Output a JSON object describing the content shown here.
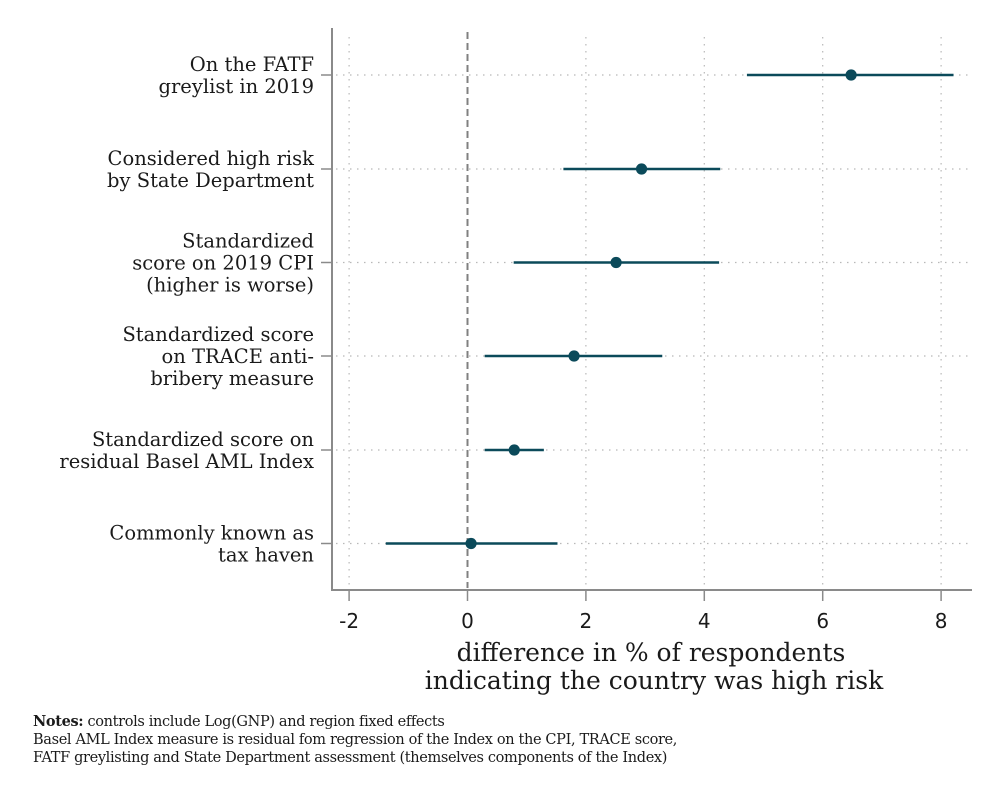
{
  "chart_data": {
    "type": "scatter",
    "subtype": "coefficient-plot",
    "title": "",
    "xlabel": [
      "difference in % of respondents",
      "indicating the country was high risk"
    ],
    "ylabel": "",
    "xlim": [
      -2.3,
      8.5
    ],
    "xticks": [
      -2,
      0,
      2,
      4,
      6,
      8
    ],
    "xtick_labels": [
      "-2",
      "0",
      "2",
      "4",
      "6",
      "8"
    ],
    "reference_line": {
      "x": 0,
      "style": "dashed"
    },
    "grid": true,
    "legend": "none",
    "color": "#0b4a5a",
    "series": [
      {
        "name": "On the FATF greylist in 2019",
        "label_lines": [
          "On the FATF",
          "greylist in 2019"
        ],
        "estimate": 6.48,
        "ci_low": 4.72,
        "ci_high": 8.21
      },
      {
        "name": "Considered high risk by State Department",
        "label_lines": [
          "Considered high risk",
          "by State Department"
        ],
        "estimate": 2.94,
        "ci_low": 1.62,
        "ci_high": 4.27
      },
      {
        "name": "Standardized score on 2019 CPI (higher is worse)",
        "label_lines": [
          "Standardized",
          "score on 2019 CPI",
          "(higher is worse)"
        ],
        "estimate": 2.51,
        "ci_low": 0.78,
        "ci_high": 4.25
      },
      {
        "name": "Standardized score on TRACE anti-bribery measure",
        "label_lines": [
          "Standardized score",
          "on TRACE anti-",
          "bribery measure"
        ],
        "estimate": 1.8,
        "ci_low": 0.29,
        "ci_high": 3.29
      },
      {
        "name": "Standardized score on residual Basel AML Index",
        "label_lines": [
          "Standardized score on",
          "residual Basel AML Index"
        ],
        "estimate": 0.79,
        "ci_low": 0.29,
        "ci_high": 1.29
      },
      {
        "name": "Commonly known as tax haven",
        "label_lines": [
          "Commonly known as",
          "tax haven"
        ],
        "estimate": 0.06,
        "ci_low": -1.38,
        "ci_high": 1.52
      }
    ]
  },
  "notes": {
    "label": "Notes:",
    "line1": " controls include Log(GNP) and region fixed effects",
    "line2": "Basel AML Index measure is residual fom regression of the Index on the CPI, TRACE score,",
    "line3": " FATF greylisting and State Department assessment (themselves components of the Index)"
  }
}
